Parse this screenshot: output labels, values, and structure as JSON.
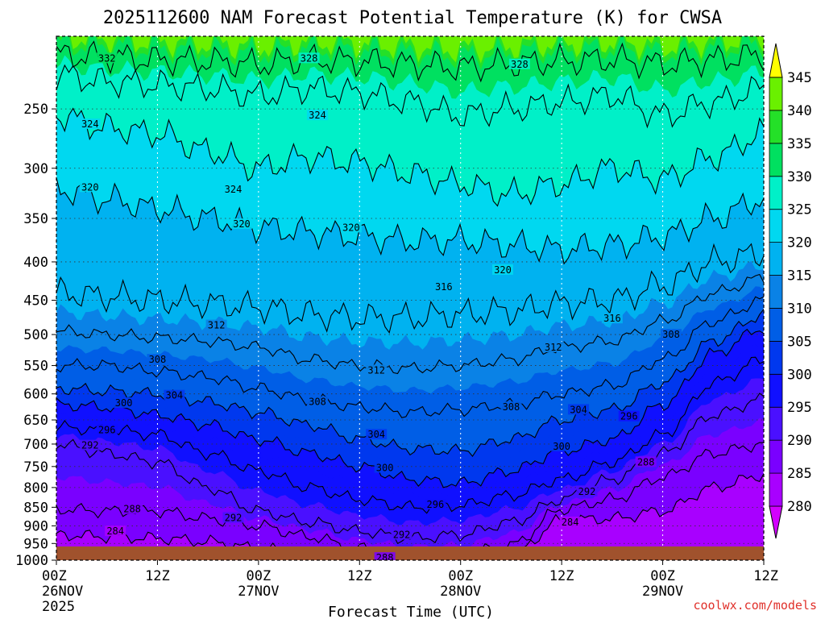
{
  "chart_data": {
    "type": "heatmap",
    "title": "2025112600 NAM Forecast Potential Temperature (K) for CWSA",
    "xlabel": "Forecast Time (UTC)",
    "ylabel": "",
    "credit": "coolwx.com/models",
    "y_axis": {
      "scale": "log",
      "ylim": [
        1000,
        200
      ],
      "ticks": [
        1000,
        950,
        900,
        850,
        800,
        750,
        700,
        650,
        600,
        550,
        500,
        450,
        400,
        350,
        300,
        250
      ]
    },
    "x_axis": {
      "xlim_hours": [
        0,
        84
      ],
      "ticks": [
        {
          "hour": 0,
          "line1": "00Z",
          "line2": "26NOV",
          "line3": "2025"
        },
        {
          "hour": 12,
          "line1": "12Z",
          "line2": "",
          "line3": ""
        },
        {
          "hour": 24,
          "line1": "00Z",
          "line2": "27NOV",
          "line3": ""
        },
        {
          "hour": 36,
          "line1": "12Z",
          "line2": "",
          "line3": ""
        },
        {
          "hour": 48,
          "line1": "00Z",
          "line2": "28NOV",
          "line3": ""
        },
        {
          "hour": 60,
          "line1": "12Z",
          "line2": "",
          "line3": ""
        },
        {
          "hour": 72,
          "line1": "00Z",
          "line2": "29NOV",
          "line3": ""
        },
        {
          "hour": 84,
          "line1": "12Z",
          "line2": "",
          "line3": ""
        }
      ]
    },
    "colorbar": {
      "levels": [
        280,
        285,
        290,
        295,
        300,
        305,
        310,
        315,
        320,
        325,
        330,
        335,
        340,
        345
      ],
      "colors": [
        "#d200ff",
        "#a800ff",
        "#7a00ff",
        "#4a10ff",
        "#1010ff",
        "#0038ee",
        "#005ee6",
        "#0a82e6",
        "#00b2f0",
        "#00d8f0",
        "#00f0c8",
        "#00e060",
        "#24e028",
        "#6af000",
        "#c8f000",
        "#ffff00"
      ]
    },
    "contour_levels": [
      284,
      288,
      292,
      296,
      300,
      304,
      308,
      312,
      316,
      320,
      324,
      328,
      332
    ],
    "contour_times_hours": [
      0,
      6,
      12,
      18,
      24,
      30,
      36,
      42,
      48,
      54,
      60,
      66,
      72,
      78,
      84
    ],
    "contour_pressures_hpa": {
      "284": [
        925,
        930,
        935,
        945,
        965,
        985,
        1000,
        1000,
        1000,
        985,
        885,
        880,
        860,
        800,
        770
      ],
      "288": [
        855,
        860,
        860,
        880,
        900,
        930,
        965,
        985,
        985,
        955,
        855,
        830,
        775,
        720,
        700
      ],
      "292": [
        700,
        720,
        740,
        800,
        860,
        890,
        915,
        935,
        925,
        890,
        830,
        780,
        720,
        640,
        610
      ],
      "296": [
        665,
        670,
        680,
        720,
        760,
        800,
        830,
        850,
        845,
        820,
        780,
        740,
        680,
        580,
        540
      ],
      "300": [
        620,
        625,
        640,
        660,
        690,
        720,
        750,
        780,
        790,
        760,
        715,
        690,
        620,
        530,
        490
      ],
      "304": [
        590,
        595,
        600,
        615,
        635,
        660,
        690,
        710,
        715,
        690,
        650,
        630,
        580,
        510,
        470
      ],
      "308": [
        550,
        550,
        560,
        570,
        590,
        610,
        625,
        635,
        630,
        620,
        600,
        585,
        540,
        480,
        450
      ],
      "312": [
        495,
        500,
        505,
        510,
        520,
        540,
        550,
        555,
        550,
        540,
        520,
        510,
        480,
        440,
        420
      ],
      "316": [
        440,
        445,
        450,
        455,
        460,
        470,
        475,
        475,
        470,
        465,
        455,
        450,
        430,
        400,
        390
      ],
      "320": [
        320,
        330,
        340,
        350,
        360,
        365,
        370,
        375,
        375,
        380,
        385,
        380,
        370,
        350,
        330
      ],
      "324": [
        255,
        265,
        270,
        285,
        300,
        290,
        295,
        305,
        315,
        325,
        315,
        300,
        310,
        290,
        270
      ],
      "328": [
        225,
        230,
        232,
        235,
        240,
        235,
        238,
        245,
        255,
        250,
        245,
        240,
        255,
        245,
        235
      ],
      "332": [
        212,
        213,
        215,
        216,
        218,
        215,
        216,
        218,
        220,
        218,
        216,
        215,
        218,
        215,
        212
      ]
    },
    "contour_label_positions": [
      {
        "level": 332,
        "hour": 6,
        "p": 214
      },
      {
        "level": 328,
        "hour": 30,
        "p": 214
      },
      {
        "level": 328,
        "hour": 55,
        "p": 218
      },
      {
        "level": 324,
        "hour": 4,
        "p": 262
      },
      {
        "level": 324,
        "hour": 31,
        "p": 255
      },
      {
        "level": 324,
        "hour": 21,
        "p": 320
      },
      {
        "level": 320,
        "hour": 4,
        "p": 318
      },
      {
        "level": 320,
        "hour": 22,
        "p": 356
      },
      {
        "level": 320,
        "hour": 35,
        "p": 360
      },
      {
        "level": 320,
        "hour": 53,
        "p": 410
      },
      {
        "level": 316,
        "hour": 46,
        "p": 432
      },
      {
        "level": 316,
        "hour": 66,
        "p": 476
      },
      {
        "level": 312,
        "hour": 19,
        "p": 486
      },
      {
        "level": 312,
        "hour": 38,
        "p": 558
      },
      {
        "level": 312,
        "hour": 59,
        "p": 520
      },
      {
        "level": 308,
        "hour": 12,
        "p": 540
      },
      {
        "level": 308,
        "hour": 31,
        "p": 615
      },
      {
        "level": 308,
        "hour": 54,
        "p": 625
      },
      {
        "level": 308,
        "hour": 73,
        "p": 500
      },
      {
        "level": 304,
        "hour": 14,
        "p": 603
      },
      {
        "level": 304,
        "hour": 38,
        "p": 680
      },
      {
        "level": 304,
        "hour": 62,
        "p": 630
      },
      {
        "level": 300,
        "hour": 8,
        "p": 617
      },
      {
        "level": 300,
        "hour": 39,
        "p": 753
      },
      {
        "level": 300,
        "hour": 60,
        "p": 705
      },
      {
        "level": 296,
        "hour": 6,
        "p": 670
      },
      {
        "level": 296,
        "hour": 45,
        "p": 843
      },
      {
        "level": 296,
        "hour": 68,
        "p": 643
      },
      {
        "level": 292,
        "hour": 4,
        "p": 703
      },
      {
        "level": 292,
        "hour": 21,
        "p": 878
      },
      {
        "level": 292,
        "hour": 41,
        "p": 925
      },
      {
        "level": 292,
        "hour": 63,
        "p": 810
      },
      {
        "level": 288,
        "hour": 9,
        "p": 855
      },
      {
        "level": 288,
        "hour": 39,
        "p": 993
      },
      {
        "level": 288,
        "hour": 70,
        "p": 740
      },
      {
        "level": 284,
        "hour": 7,
        "p": 915
      },
      {
        "level": 284,
        "hour": 61,
        "p": 890
      }
    ]
  }
}
